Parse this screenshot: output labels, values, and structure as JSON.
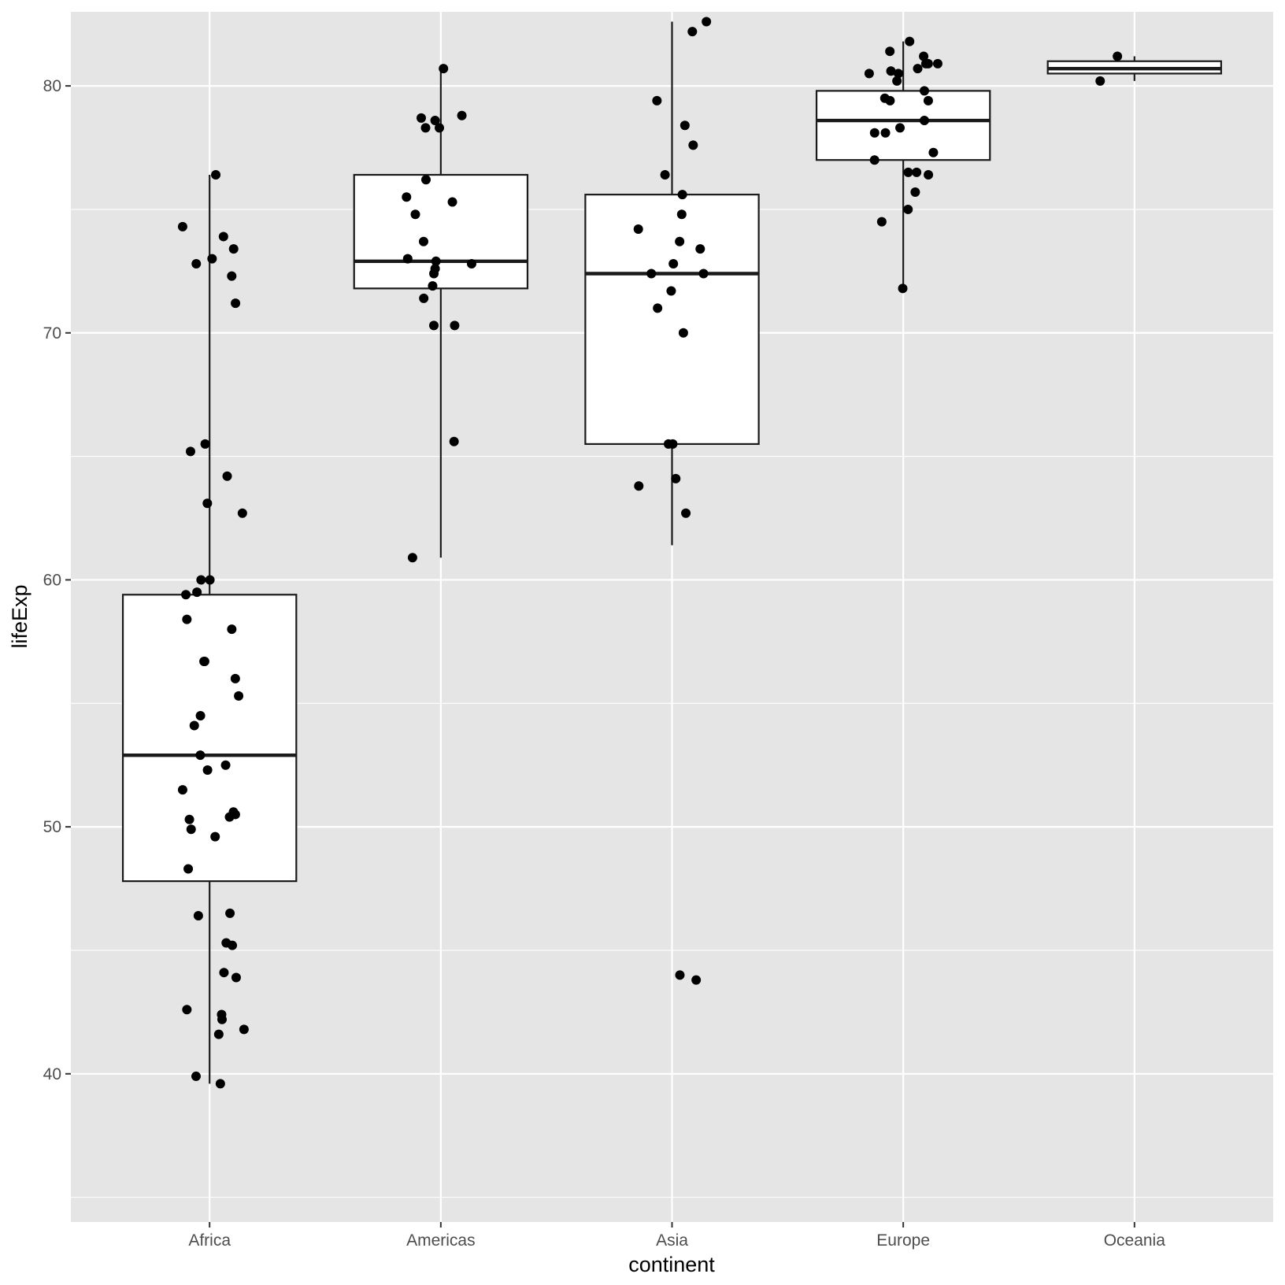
{
  "chart_data": {
    "type": "boxplot",
    "xlabel": "continent",
    "ylabel": "lifeExp",
    "categories": [
      "Africa",
      "Americas",
      "Asia",
      "Europe",
      "Oceania"
    ],
    "ylim": [
      34.0,
      83.0
    ],
    "yticks": [
      40,
      50,
      60,
      70,
      80
    ],
    "grid": true,
    "boxes": [
      {
        "category": "Africa",
        "min": 39.6,
        "q1": 47.8,
        "median": 52.9,
        "q3": 59.4,
        "max": 76.4
      },
      {
        "category": "Americas",
        "min": 60.9,
        "q1": 71.8,
        "median": 72.9,
        "q3": 76.4,
        "max": 80.7
      },
      {
        "category": "Asia",
        "min": 61.4,
        "q1": 65.5,
        "median": 72.4,
        "q3": 75.6,
        "max": 82.6
      },
      {
        "category": "Europe",
        "min": 71.8,
        "q1": 77.0,
        "median": 78.6,
        "q3": 79.8,
        "max": 81.8
      },
      {
        "category": "Oceania",
        "min": 80.2,
        "q1": 80.5,
        "median": 80.7,
        "q3": 81.0,
        "max": 81.2
      }
    ],
    "points": [
      {
        "category": "Africa",
        "y": [
          39.6,
          39.9,
          41.6,
          41.8,
          42.2,
          42.4,
          42.6,
          43.9,
          44.1,
          45.2,
          45.3,
          46.4,
          46.5,
          48.3,
          49.6,
          49.9,
          50.3,
          50.4,
          50.5,
          50.6,
          51.5,
          52.3,
          52.5,
          52.9,
          54.1,
          54.5,
          55.3,
          56.0,
          56.7,
          56.7,
          58.0,
          58.4,
          59.4,
          59.5,
          60.0,
          60.0,
          62.7,
          63.1,
          64.2,
          65.2,
          65.5,
          71.2,
          72.3,
          72.8,
          73.0,
          73.4,
          73.9,
          74.3,
          76.4
        ]
      },
      {
        "category": "Americas",
        "y": [
          60.9,
          65.6,
          70.3,
          70.3,
          71.4,
          71.9,
          72.4,
          72.6,
          72.8,
          72.9,
          73.0,
          73.7,
          74.8,
          75.3,
          75.5,
          76.2,
          78.3,
          78.6,
          78.7,
          78.8,
          78.3,
          80.7
        ]
      },
      {
        "category": "Asia",
        "y": [
          43.8,
          44.0,
          62.7,
          63.8,
          64.1,
          65.5,
          65.5,
          70.0,
          71.0,
          71.7,
          72.4,
          72.4,
          72.8,
          73.4,
          73.7,
          74.2,
          74.8,
          75.6,
          76.4,
          77.6,
          78.4,
          79.4,
          82.2,
          82.6
        ]
      },
      {
        "category": "Europe",
        "y": [
          71.8,
          74.5,
          75.0,
          75.7,
          76.4,
          76.5,
          76.5,
          77.0,
          77.3,
          78.1,
          78.1,
          78.3,
          78.6,
          79.4,
          79.4,
          79.5,
          79.8,
          80.2,
          80.5,
          80.5,
          80.6,
          80.7,
          80.9,
          81.2,
          80.9,
          81.8,
          80.9,
          81.4
        ]
      },
      {
        "category": "Oceania",
        "y": [
          80.2,
          81.2
        ]
      }
    ]
  }
}
